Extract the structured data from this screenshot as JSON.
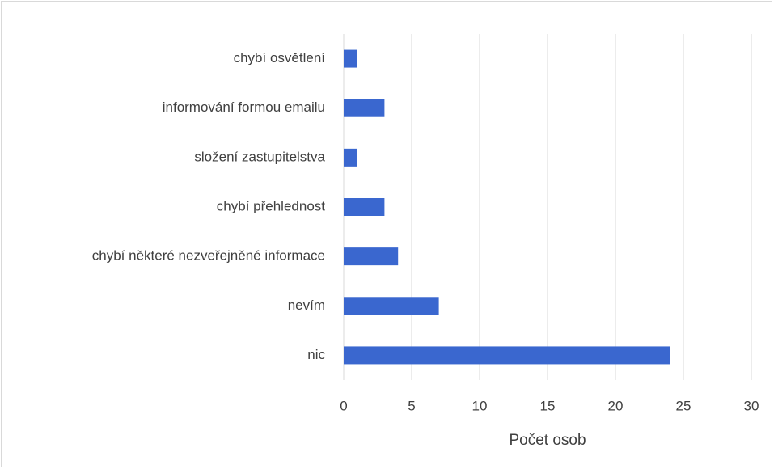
{
  "chart_data": {
    "type": "bar",
    "orientation": "horizontal",
    "categories": [
      "chybí osvětlení",
      "informování formou emailu",
      "složení zastupitelstva",
      "chybí přehlednost",
      "chybí některé nezveřejněné informace",
      "nevím",
      "nic"
    ],
    "values": [
      1,
      3,
      1,
      3,
      4,
      7,
      24
    ],
    "color": "#3a67cf",
    "xlabel": "Počet osob",
    "xlim": [
      0,
      30
    ],
    "xticks": [
      0,
      5,
      10,
      15,
      20,
      25,
      30
    ],
    "grid": true
  }
}
